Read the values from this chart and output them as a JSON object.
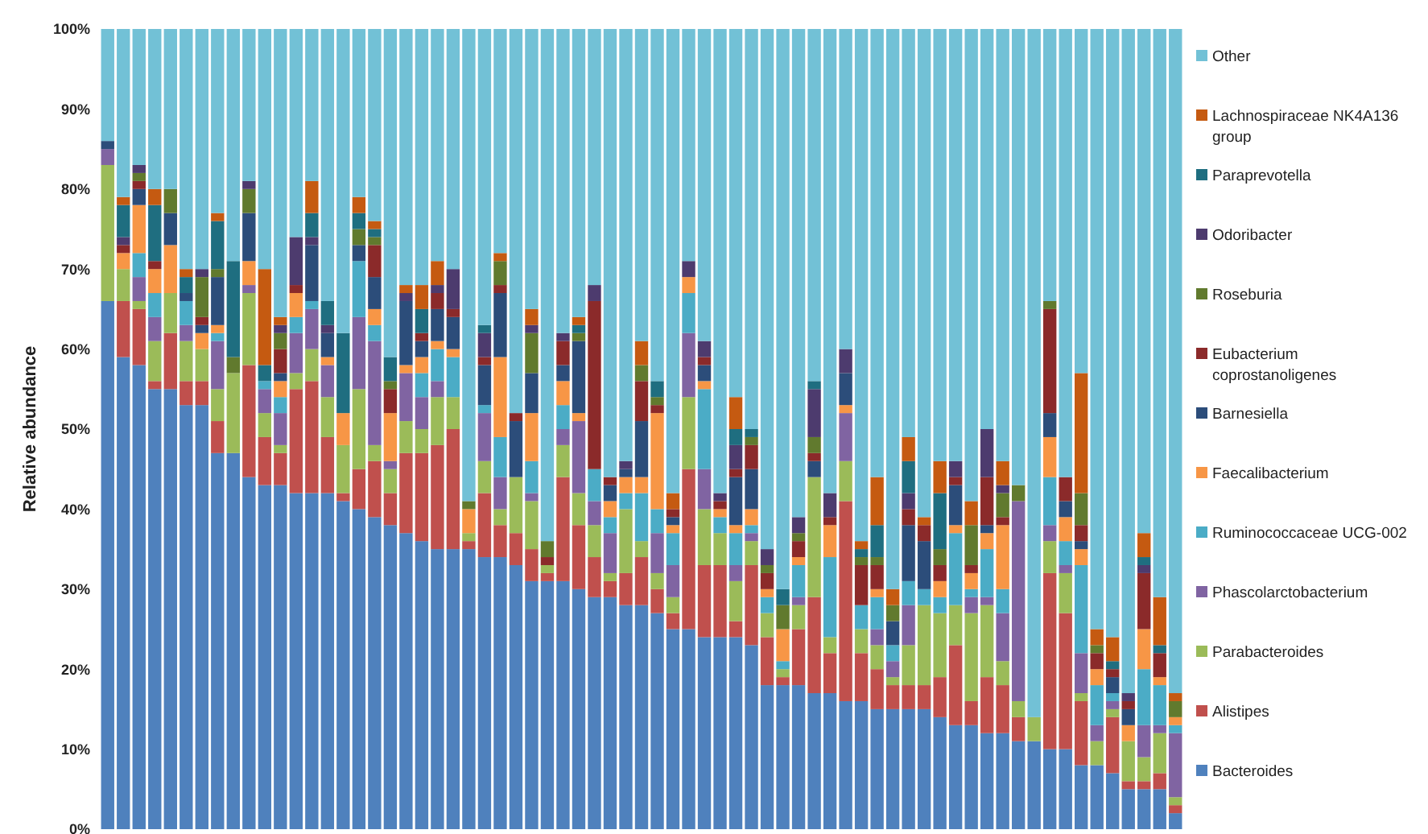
{
  "chart_data": {
    "type": "bar",
    "stacked": true,
    "ylabel": "Relative abundance",
    "legend": "right",
    "categories": [
      null,
      null,
      null,
      null,
      null,
      null,
      null,
      null,
      null,
      null,
      null,
      null,
      null,
      null,
      null,
      null,
      null,
      null,
      null,
      null,
      null,
      null,
      null,
      null,
      null,
      null,
      null,
      null,
      null,
      null,
      null,
      null,
      null,
      null,
      null,
      null,
      null,
      null,
      null,
      null,
      null,
      null,
      null,
      null,
      null,
      null,
      null,
      null,
      null,
      null,
      null,
      null,
      null,
      null,
      null,
      null,
      null,
      null,
      null,
      null,
      null,
      null,
      null,
      null,
      null,
      null,
      null,
      null,
      null
    ],
    "ylim": [
      0,
      100
    ],
    "yticks": [
      {
        "value": 0,
        "label": "0%"
      },
      {
        "value": 10,
        "label": "10%"
      },
      {
        "value": 20,
        "label": "20%"
      },
      {
        "value": 30,
        "label": "30%"
      },
      {
        "value": 40,
        "label": "40%"
      },
      {
        "value": 50,
        "label": "50%"
      },
      {
        "value": 60,
        "label": "60%"
      },
      {
        "value": 70,
        "label": "70%"
      },
      {
        "value": 80,
        "label": "80%"
      },
      {
        "value": 90,
        "label": "90%"
      },
      {
        "value": 100,
        "label": "100%"
      }
    ],
    "series": [
      {
        "name": "Bacteroides",
        "color": "#4f81bd",
        "values": [
          66,
          59,
          58,
          55,
          55,
          53,
          53,
          47,
          47,
          44,
          43,
          43,
          42,
          42,
          42,
          41,
          40,
          39,
          38,
          37,
          36,
          35,
          35,
          35,
          34,
          34,
          33,
          31,
          31,
          31,
          30,
          29,
          29,
          28,
          28,
          27,
          25,
          25,
          24,
          24,
          24,
          23,
          18,
          18,
          18,
          17,
          17,
          16,
          16,
          15,
          15,
          15,
          15,
          14,
          13,
          13,
          12,
          12,
          11,
          11,
          10,
          10,
          8,
          8,
          7,
          5,
          5,
          5,
          2
        ]
      },
      {
        "name": "Alistipes",
        "color": "#c0504d",
        "values": [
          0,
          7,
          7,
          1,
          7,
          3,
          3,
          4,
          0,
          14,
          6,
          4,
          13,
          14,
          7,
          1,
          5,
          7,
          4,
          10,
          11,
          13,
          15,
          1,
          8,
          4,
          4,
          4,
          1,
          13,
          8,
          5,
          2,
          4,
          6,
          3,
          2,
          20,
          9,
          9,
          2,
          10,
          6,
          1,
          7,
          12,
          5,
          25,
          6,
          5,
          3,
          3,
          3,
          5,
          10,
          3,
          7,
          6,
          3,
          0,
          22,
          17,
          8,
          0,
          7,
          1,
          1,
          2,
          1
        ]
      },
      {
        "name": "Parabacteroides",
        "color": "#9bbb59",
        "values": [
          17,
          4,
          1,
          5,
          5,
          5,
          4,
          4,
          10,
          9,
          3,
          1,
          2,
          4,
          5,
          6,
          10,
          2,
          3,
          4,
          3,
          6,
          4,
          1,
          4,
          2,
          7,
          6,
          1,
          4,
          4,
          4,
          1,
          8,
          2,
          2,
          2,
          9,
          7,
          4,
          5,
          3,
          3,
          1,
          3,
          15,
          2,
          5,
          3,
          3,
          1,
          5,
          10,
          8,
          5,
          11,
          9,
          3,
          2,
          3,
          4,
          5,
          1,
          3,
          1,
          5,
          3,
          5,
          1
        ]
      },
      {
        "name": "Phascolarctobacterium",
        "color": "#8064a2",
        "values": [
          2,
          0,
          3,
          3,
          0,
          2,
          0,
          6,
          0,
          1,
          3,
          4,
          5,
          5,
          4,
          0,
          9,
          13,
          1,
          6,
          4,
          2,
          0,
          0,
          6,
          4,
          0,
          1,
          0,
          2,
          9,
          3,
          5,
          0,
          0,
          5,
          4,
          8,
          5,
          0,
          2,
          1,
          0,
          0,
          1,
          0,
          0,
          6,
          0,
          2,
          2,
          5,
          0,
          0,
          0,
          2,
          1,
          6,
          25,
          0,
          2,
          1,
          5,
          2,
          1,
          0,
          4,
          1,
          8
        ]
      },
      {
        "name": "Ruminococcaceae UCG-002",
        "color": "#4bacc6",
        "values": [
          0,
          0,
          3,
          3,
          0,
          3,
          0,
          1,
          0,
          0,
          1,
          2,
          2,
          1,
          0,
          0,
          7,
          2,
          0,
          0,
          3,
          4,
          5,
          0,
          1,
          5,
          0,
          4,
          0,
          3,
          0,
          4,
          2,
          2,
          6,
          3,
          4,
          5,
          10,
          2,
          4,
          1,
          2,
          1,
          4,
          0,
          10,
          0,
          3,
          4,
          2,
          3,
          2,
          2,
          9,
          1,
          6,
          3,
          0,
          0,
          6,
          3,
          11,
          5,
          1,
          0,
          7,
          5,
          1
        ]
      },
      {
        "name": "Faecalibacterium",
        "color": "#f79646",
        "values": [
          0,
          2,
          6,
          3,
          6,
          0,
          2,
          1,
          0,
          3,
          0,
          2,
          3,
          0,
          1,
          4,
          0,
          2,
          6,
          1,
          2,
          1,
          1,
          3,
          0,
          10,
          0,
          6,
          0,
          3,
          1,
          0,
          2,
          2,
          2,
          12,
          1,
          2,
          1,
          1,
          1,
          2,
          1,
          4,
          1,
          0,
          4,
          1,
          0,
          1,
          0,
          0,
          0,
          2,
          1,
          2,
          2,
          8,
          0,
          0,
          5,
          3,
          2,
          2,
          0,
          2,
          5,
          1,
          1
        ]
      },
      {
        "name": "Barnesiella",
        "color": "#2c4d7a",
        "values": [
          1,
          0,
          2,
          0,
          4,
          1,
          1,
          6,
          0,
          6,
          0,
          1,
          0,
          7,
          3,
          0,
          2,
          4,
          0,
          8,
          2,
          4,
          4,
          0,
          5,
          8,
          7,
          5,
          0,
          2,
          9,
          0,
          2,
          1,
          7,
          0,
          1,
          0,
          2,
          0,
          6,
          5,
          0,
          0,
          0,
          2,
          0,
          4,
          0,
          0,
          3,
          7,
          6,
          0,
          5,
          0,
          1,
          0,
          0,
          0,
          3,
          2,
          1,
          0,
          2,
          2,
          0,
          0,
          0
        ]
      },
      {
        "name": "Eubacterium coprostanoligenes",
        "color": "#8b2a2a",
        "values": [
          0,
          1,
          1,
          1,
          0,
          0,
          1,
          0,
          0,
          0,
          0,
          3,
          1,
          0,
          0,
          0,
          0,
          4,
          3,
          0,
          1,
          2,
          1,
          0,
          1,
          1,
          1,
          0,
          1,
          3,
          0,
          21,
          1,
          0,
          5,
          1,
          1,
          0,
          1,
          1,
          1,
          3,
          2,
          0,
          2,
          1,
          1,
          0,
          5,
          3,
          0,
          2,
          2,
          2,
          1,
          1,
          6,
          1,
          0,
          0,
          13,
          3,
          2,
          2,
          1,
          1,
          7,
          3,
          0
        ]
      },
      {
        "name": "Roseburia",
        "color": "#617a2e",
        "values": [
          0,
          0,
          1,
          0,
          3,
          0,
          5,
          1,
          2,
          3,
          0,
          2,
          0,
          0,
          0,
          0,
          2,
          1,
          1,
          0,
          0,
          0,
          0,
          1,
          0,
          3,
          0,
          5,
          2,
          0,
          1,
          0,
          0,
          0,
          2,
          1,
          0,
          0,
          0,
          0,
          0,
          1,
          1,
          3,
          1,
          2,
          0,
          0,
          1,
          1,
          2,
          0,
          0,
          2,
          0,
          5,
          0,
          3,
          2,
          0,
          1,
          0,
          4,
          1,
          0,
          0,
          0,
          0,
          2
        ]
      },
      {
        "name": "Odoribacter",
        "color": "#4d3b6e",
        "values": [
          0,
          1,
          1,
          0,
          0,
          0,
          1,
          0,
          0,
          1,
          0,
          1,
          6,
          1,
          1,
          0,
          0,
          0,
          0,
          1,
          0,
          1,
          5,
          0,
          3,
          0,
          0,
          1,
          0,
          1,
          0,
          2,
          0,
          1,
          0,
          0,
          0,
          2,
          2,
          1,
          3,
          0,
          2,
          0,
          2,
          6,
          3,
          3,
          0,
          0,
          0,
          2,
          0,
          0,
          2,
          0,
          6,
          1,
          0,
          0,
          0,
          0,
          0,
          0,
          0,
          1,
          1,
          0,
          0
        ]
      },
      {
        "name": "Paraprevotella",
        "color": "#1f6e80",
        "values": [
          0,
          4,
          0,
          7,
          0,
          2,
          0,
          6,
          12,
          0,
          2,
          0,
          0,
          3,
          3,
          10,
          2,
          1,
          3,
          0,
          3,
          0,
          0,
          0,
          1,
          0,
          0,
          0,
          0,
          0,
          1,
          0,
          0,
          0,
          0,
          2,
          0,
          0,
          0,
          0,
          2,
          1,
          0,
          2,
          0,
          1,
          0,
          0,
          1,
          4,
          0,
          4,
          0,
          7,
          0,
          0,
          0,
          0,
          0,
          0,
          0,
          0,
          0,
          0,
          1,
          0,
          1,
          1,
          0
        ]
      },
      {
        "name": "Lachnospiraceae NK4A136 group",
        "color": "#c55a11",
        "values": [
          0,
          1,
          0,
          2,
          0,
          1,
          0,
          1,
          0,
          0,
          12,
          1,
          0,
          4,
          0,
          0,
          2,
          1,
          0,
          1,
          3,
          3,
          0,
          0,
          0,
          1,
          0,
          2,
          0,
          0,
          1,
          0,
          0,
          0,
          3,
          0,
          2,
          0,
          0,
          0,
          4,
          0,
          0,
          0,
          0,
          0,
          0,
          0,
          1,
          6,
          2,
          3,
          1,
          4,
          0,
          3,
          0,
          3,
          0,
          0,
          0,
          0,
          15,
          2,
          3,
          0,
          3,
          6,
          1
        ]
      },
      {
        "name": "Other",
        "color": "#72c1d6",
        "values": [
          14,
          21,
          17,
          20,
          20,
          30,
          30,
          23,
          29,
          19,
          30,
          36,
          26,
          19,
          34,
          38,
          21,
          24,
          41,
          32,
          32,
          29,
          30,
          59,
          37,
          28,
          48,
          35,
          64,
          38,
          36,
          32,
          56,
          54,
          39,
          44,
          58,
          29,
          39,
          58,
          46,
          50,
          65,
          70,
          61,
          44,
          58,
          40,
          64,
          56,
          70,
          51,
          61,
          54,
          54,
          59,
          50,
          54,
          57,
          86,
          34,
          56,
          43,
          75,
          76,
          83,
          63,
          71,
          83
        ]
      }
    ]
  }
}
